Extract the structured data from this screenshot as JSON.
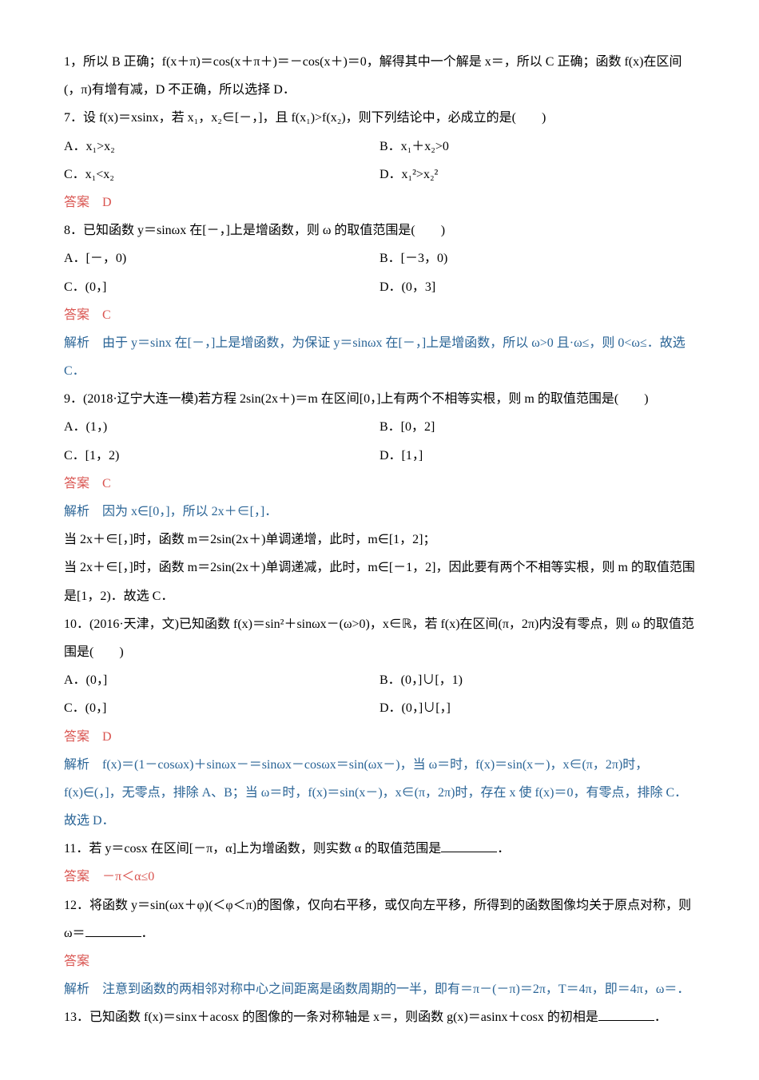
{
  "intro1": "1，所以 B 正确；f(x＋π)＝cos(x＋π＋)＝－cos(x＋)＝0，解得其中一个解是 x＝，所以 C 正确；函数 f(x)在区间(，π)有增有减，D 不正确，所以选择 D．",
  "q7": {
    "stem": "7．设 f(x)＝xsinx，若 x₁，x₂∈[－，]，且 f(x₁)>f(x₂)，则下列结论中，必成立的是(　　)",
    "a": "A．x₁>x₂",
    "b": "B．x₁＋x₂>0",
    "c": "C．x₁<x₂",
    "d": "D．x₁²>x₂²",
    "answer": "答案　D"
  },
  "q8": {
    "stem": "8．已知函数 y＝sinωx 在[－，]上是增函数，则 ω 的取值范围是(　　)",
    "a": "A．[－，0)",
    "b": "B．[－3，0)",
    "c": "C．(0，]",
    "d": "D．(0，3]",
    "answer": "答案　C",
    "explain": "解析　由于 y＝sinx 在[－，]上是增函数，为保证 y＝sinωx 在[－，]上是增函数，所以 ω>0 且·ω≤，则 0<ω≤．故选 C．"
  },
  "q9": {
    "stem": "9．(2018·辽宁大连一模)若方程 2sin(2x＋)＝m 在区间[0，]上有两个不相等实根，则 m 的取值范围是(　　)",
    "a": "A．(1，)",
    "b": "B．[0，2]",
    "c": "C．[1，2)",
    "d": "D．[1，]",
    "answer": "答案　C",
    "explain1": "解析　因为 x∈[0，]，所以 2x＋∈[，]．",
    "explain2": "当 2x＋∈[，]时，函数 m＝2sin(2x＋)单调递增，此时，m∈[1，2]；",
    "explain3": "当 2x＋∈[，]时，函数 m＝2sin(2x＋)单调递减，此时，m∈[－1，2]，因此要有两个不相等实根，则 m 的取值范围是[1，2)．故选 C．"
  },
  "q10": {
    "stem_a": "10．(2016·天津，文)已知函数 f(x)＝sin²＋sinωx－(ω>0)，x∈",
    "stem_b": "，若 f(x)在区间(π，2π)内没有零点，则 ω 的取值范围是(　　)",
    "a": "A．(0，]",
    "b": "B．(0，]∪[，1)",
    "c": "C．(0，]",
    "d": "D．(0，]∪[，]",
    "answer": "答案　D",
    "explain1": "解析　f(x)＝(1－cosωx)＋sinωx－＝sinωx－cosωx＝sin(ωx－)，当 ω＝时，f(x)＝sin(x－)，x∈(π，2π)时，f(x)∈(，]，无零点，排除 A、B；当 ω＝时，f(x)＝sin(x－)，x∈(π，2π)时，存在 x 使 f(x)＝0，有零点，排除 C．故选 D．"
  },
  "q11": {
    "stem": "11．若 y＝cosx 在区间[－π，α]上为增函数，则实数 α 的取值范围是",
    "period": "．",
    "answer": "答案　－π＜α≤0"
  },
  "q12": {
    "stem": "12．将函数 y＝sin(ωx＋φ)(＜φ＜π)的图像，仅向右平移，或仅向左平移，所得到的函数图像均关于原点对称，则 ω＝",
    "period": "．",
    "answer": "答案",
    "explain": "解析　注意到函数的两相邻对称中心之间距离是函数周期的一半，即有＝π－(－π)＝2π，T＝4π，即＝4π，ω＝．"
  },
  "q13": {
    "stem1": "13．已知函数 f(x)＝sinx＋acosx 的图像的一条对称轴是 x＝，则函数 g(x)＝asinx＋cosx 的初相是",
    "period": "．"
  },
  "labels": {
    "answer": "答案",
    "explain": "解析"
  }
}
